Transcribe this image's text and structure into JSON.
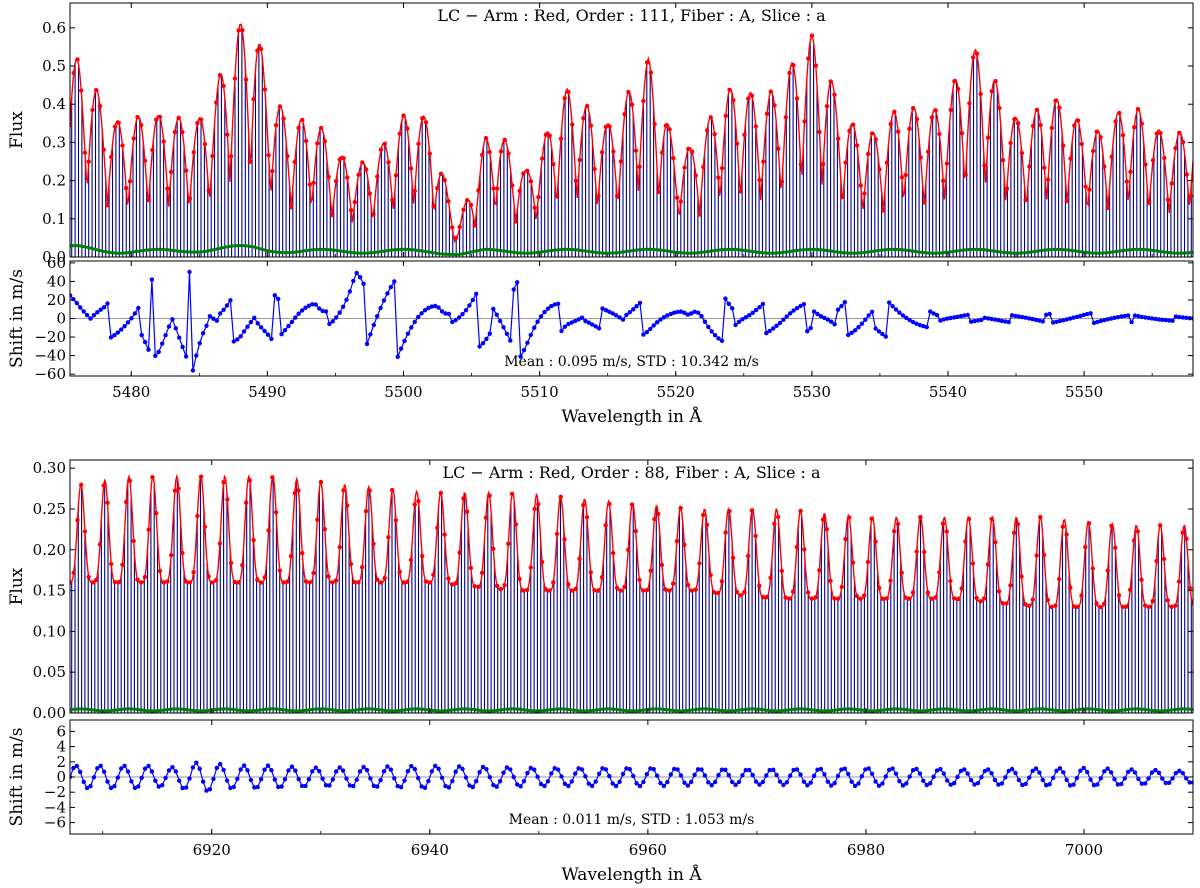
{
  "figure": {
    "top_block": {
      "xlabel": "Wavelength in Å",
      "xlim": [
        5475.5,
        5558
      ],
      "xticks": [
        5480,
        5490,
        5500,
        5510,
        5520,
        5530,
        5540,
        5550
      ],
      "flux_panel": {
        "title": "LC − Arm :  Red,  Order : 111,  Fiber : A,  Slice : a",
        "ylabel": "Flux",
        "ylim": [
          0,
          0.665
        ],
        "yticks": [
          0.0,
          0.1,
          0.2,
          0.3,
          0.4,
          0.5,
          0.6
        ]
      },
      "shift_panel": {
        "ylabel": "Shift in m/s",
        "ylim": [
          -62,
          62
        ],
        "yticks": [
          -60,
          -40,
          -20,
          0,
          20,
          40,
          60
        ],
        "annotation": "Mean : 0.095 m/s,  STD : 10.342 m/s"
      }
    },
    "bottom_block": {
      "xlabel": "Wavelength in Å",
      "xlim": [
        6907,
        7010
      ],
      "xticks": [
        6920,
        6940,
        6960,
        6980,
        7000
      ],
      "flux_panel": {
        "title": "LC − Arm :  Red,  Order : 88,  Fiber : A,  Slice : a",
        "ylabel": "Flux",
        "ylim": [
          0,
          0.31
        ],
        "yticks": [
          0.0,
          0.05,
          0.1,
          0.15,
          0.2,
          0.25,
          0.3
        ]
      },
      "shift_panel": {
        "ylabel": "Shift in m/s",
        "ylim": [
          -7.5,
          7.5
        ],
        "yticks": [
          -6,
          -4,
          -2,
          0,
          2,
          4,
          6
        ],
        "annotation": "Mean : 0.011 m/s,  STD : 1.053 m/s"
      }
    }
  },
  "colors": {
    "spectrum": "#00008b",
    "envelope": "#ff0000",
    "background": "#008000",
    "shift": "#0000ff",
    "zero_line": "#9a9a9a"
  },
  "chart_data": [
    {
      "type": "line",
      "panel": "order-111-flux",
      "title": "LC − Arm :  Red,  Order : 111,  Fiber : A,  Slice : a",
      "xlabel": "Wavelength in Å",
      "ylabel": "Flux",
      "xlim": [
        5475.5,
        5558
      ],
      "ylim": [
        0,
        0.665
      ],
      "grid": false,
      "x": [
        5476,
        5479,
        5482,
        5483.5,
        5486,
        5489,
        5492,
        5495,
        5497,
        5499,
        5502,
        5504,
        5506,
        5507,
        5509,
        5512,
        5515,
        5518,
        5520,
        5522,
        5525,
        5527,
        5530,
        5533,
        5535,
        5539,
        5542.5,
        5546,
        5549,
        5552,
        5555,
        5558
      ],
      "series": [
        {
          "role": "peak-envelope",
          "values": [
            0.52,
            0.46,
            0.37,
            0.41,
            0.51,
            0.66,
            0.43,
            0.29,
            0.32,
            0.34,
            0.43,
            0.1,
            0.31,
            0.36,
            0.29,
            0.44,
            0.45,
            0.52,
            0.34,
            0.4,
            0.46,
            0.56,
            0.58,
            0.45,
            0.34,
            0.5,
            0.55,
            0.44,
            0.4,
            0.44,
            0.36,
            0.45
          ]
        },
        {
          "role": "background",
          "values": [
            0.03,
            0.02,
            0.02,
            0.02,
            0.03,
            0.03,
            0.02,
            0.02,
            0.02,
            0.02,
            0.02,
            0.01,
            0.02,
            0.02,
            0.02,
            0.02,
            0.02,
            0.02,
            0.02,
            0.02,
            0.02,
            0.02,
            0.02,
            0.02,
            0.02,
            0.02,
            0.02,
            0.02,
            0.02,
            0.02,
            0.02,
            0.02
          ]
        }
      ]
    },
    {
      "type": "line",
      "panel": "order-111-shift",
      "xlabel": "Wavelength in Å",
      "ylabel": "Shift in m/s",
      "xlim": [
        5475.5,
        5558
      ],
      "ylim": [
        -62,
        62
      ],
      "annotation": "Mean : 0.095 m/s,  STD : 10.342 m/s",
      "x": [
        5476,
        5478,
        5480,
        5481.5,
        5482,
        5484,
        5484.5,
        5486,
        5488,
        5490,
        5492,
        5494,
        5496,
        5497,
        5497.5,
        5500,
        5503,
        5506,
        5507,
        5509,
        5512,
        5515,
        5518,
        5521,
        5522,
        5525,
        5528,
        5531,
        5534,
        5535,
        5540,
        5545,
        5550,
        5555,
        5558
      ],
      "values": [
        -25,
        18,
        28,
        -42,
        55,
        -60,
        58,
        -10,
        30,
        -25,
        28,
        -12,
        40,
        -60,
        60,
        40,
        -8,
        36,
        -40,
        45,
        10,
        -12,
        20,
        -5,
        -38,
        12,
        22,
        -10,
        28,
        -22,
        4,
        -4,
        6,
        -3,
        -2
      ]
    },
    {
      "type": "line",
      "panel": "order-88-flux",
      "title": "LC − Arm :  Red,  Order : 88,  Fiber : A,  Slice : a",
      "xlabel": "Wavelength in Å",
      "ylabel": "Flux",
      "xlim": [
        6907,
        7010
      ],
      "ylim": [
        0,
        0.31
      ],
      "grid": false,
      "x": [
        6908,
        6912,
        6916,
        6920,
        6926,
        6932,
        6940,
        6948,
        6956,
        6964,
        6972,
        6980,
        6988,
        6996,
        7004,
        7009
      ],
      "series": [
        {
          "role": "peak-envelope",
          "values": [
            0.28,
            0.29,
            0.29,
            0.29,
            0.29,
            0.28,
            0.27,
            0.27,
            0.26,
            0.25,
            0.25,
            0.24,
            0.24,
            0.24,
            0.23,
            0.23
          ]
        },
        {
          "role": "trough-envelope",
          "values": [
            0.16,
            0.16,
            0.16,
            0.16,
            0.16,
            0.16,
            0.16,
            0.15,
            0.15,
            0.15,
            0.14,
            0.14,
            0.14,
            0.13,
            0.13,
            0.13
          ]
        },
        {
          "role": "background",
          "values": [
            0.005,
            0.005,
            0.005,
            0.005,
            0.005,
            0.005,
            0.005,
            0.005,
            0.005,
            0.005,
            0.005,
            0.005,
            0.005,
            0.005,
            0.005,
            0.005
          ]
        }
      ]
    },
    {
      "type": "line",
      "panel": "order-88-shift",
      "xlabel": "Wavelength in Å",
      "ylabel": "Shift in m/s",
      "xlim": [
        6907,
        7010
      ],
      "ylim": [
        -7.5,
        7.5
      ],
      "annotation": "Mean : 0.011 m/s,  STD : 1.053 m/s",
      "x": [
        6908,
        6910,
        6912,
        6914,
        6916,
        6919,
        6922,
        6925,
        6930,
        6940,
        6950,
        6960,
        6970,
        6980,
        6990,
        7000,
        7009
      ],
      "values": [
        1.5,
        -1.5,
        1.5,
        -1.5,
        1.2,
        2.0,
        -1.5,
        1.5,
        -1.2,
        1.5,
        -1.2,
        1.2,
        -1.0,
        1.2,
        -1.0,
        1.2,
        0.8
      ]
    }
  ]
}
